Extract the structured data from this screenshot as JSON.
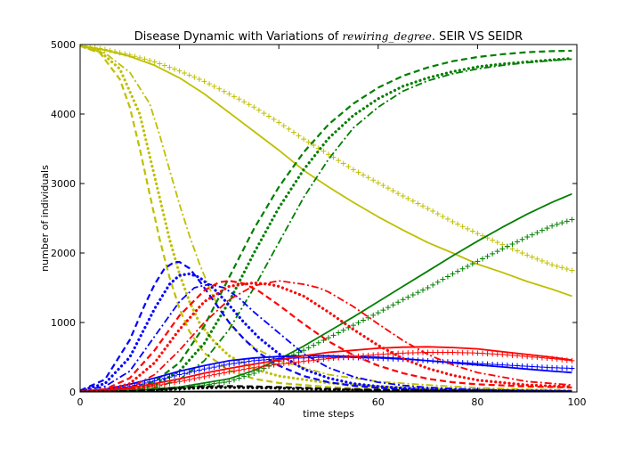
{
  "chart_data": {
    "type": "line",
    "title_parts": [
      "Disease Dynamic with Variations of ",
      "rewiring_degree",
      ". SEIR VS SEIDR"
    ],
    "xlabel": "time steps",
    "ylabel": "number of individuals",
    "xlim": [
      0,
      100
    ],
    "ylim": [
      0,
      5000
    ],
    "xticks": [
      0,
      20,
      40,
      60,
      80,
      100
    ],
    "yticks": [
      0,
      1000,
      2000,
      3000,
      4000,
      5000
    ],
    "grid": false,
    "legend": "none",
    "series": [
      {
        "color": "#bfbf00",
        "style": "solid",
        "x": [
          0,
          5,
          10,
          15,
          20,
          25,
          30,
          35,
          40,
          45,
          50,
          55,
          60,
          65,
          70,
          75,
          80,
          85,
          90,
          95,
          99
        ],
        "y": [
          4980,
          4920,
          4830,
          4700,
          4520,
          4290,
          4020,
          3750,
          3480,
          3190,
          2950,
          2730,
          2520,
          2330,
          2150,
          2000,
          1840,
          1720,
          1590,
          1480,
          1380
        ]
      },
      {
        "color": "#bfbf00",
        "style": "plus",
        "x": [
          0,
          5,
          10,
          15,
          20,
          25,
          30,
          35,
          40,
          45,
          50,
          55,
          60,
          65,
          70,
          75,
          80,
          85,
          90,
          95,
          99
        ],
        "y": [
          4990,
          4930,
          4850,
          4750,
          4620,
          4470,
          4290,
          4100,
          3880,
          3640,
          3420,
          3200,
          3010,
          2820,
          2640,
          2450,
          2280,
          2120,
          1970,
          1830,
          1750
        ]
      },
      {
        "color": "#bfbf00",
        "style": "dashed",
        "x": [
          0,
          4,
          8,
          10,
          12,
          14,
          16,
          18,
          20,
          22,
          25,
          30,
          35,
          40,
          50,
          60,
          70,
          80,
          90,
          99
        ],
        "y": [
          4980,
          4880,
          4500,
          4100,
          3500,
          2850,
          2200,
          1650,
          1200,
          870,
          560,
          310,
          190,
          130,
          70,
          40,
          25,
          15,
          10,
          8
        ]
      },
      {
        "color": "#bfbf00",
        "style": "dotted",
        "x": [
          0,
          4,
          8,
          12,
          14,
          16,
          18,
          20,
          22,
          24,
          27,
          30,
          35,
          40,
          50,
          60,
          70,
          80,
          90,
          99
        ],
        "y": [
          4980,
          4900,
          4650,
          4000,
          3400,
          2800,
          2200,
          1700,
          1300,
          1000,
          720,
          520,
          330,
          230,
          130,
          80,
          50,
          30,
          20,
          15
        ]
      },
      {
        "color": "#bfbf00",
        "style": "dashdot",
        "x": [
          0,
          5,
          10,
          14,
          16,
          18,
          20,
          22,
          24,
          26,
          28,
          31,
          35,
          40,
          50,
          60,
          70,
          80,
          90,
          99
        ],
        "y": [
          4980,
          4880,
          4600,
          4150,
          3700,
          3200,
          2700,
          2250,
          1850,
          1500,
          1200,
          900,
          640,
          450,
          250,
          150,
          100,
          60,
          40,
          30
        ]
      },
      {
        "color": "#007f00",
        "style": "solid",
        "x": [
          0,
          10,
          20,
          30,
          35,
          40,
          45,
          50,
          55,
          60,
          65,
          70,
          75,
          80,
          85,
          90,
          95,
          99
        ],
        "y": [
          5,
          20,
          70,
          190,
          310,
          470,
          660,
          870,
          1080,
          1300,
          1520,
          1740,
          1960,
          2170,
          2370,
          2560,
          2730,
          2850
        ]
      },
      {
        "color": "#007f00",
        "style": "plus",
        "x": [
          0,
          10,
          20,
          30,
          35,
          40,
          45,
          50,
          55,
          60,
          65,
          70,
          75,
          80,
          85,
          90,
          95,
          99
        ],
        "y": [
          5,
          15,
          50,
          150,
          270,
          440,
          600,
          780,
          960,
          1140,
          1330,
          1500,
          1700,
          1880,
          2060,
          2230,
          2390,
          2480
        ]
      },
      {
        "color": "#007f00",
        "style": "dashed",
        "x": [
          0,
          10,
          15,
          20,
          25,
          30,
          35,
          40,
          45,
          50,
          55,
          60,
          65,
          70,
          75,
          80,
          85,
          90,
          95,
          99
        ],
        "y": [
          5,
          40,
          150,
          420,
          950,
          1650,
          2350,
          2950,
          3450,
          3850,
          4150,
          4380,
          4550,
          4670,
          4760,
          4820,
          4860,
          4890,
          4905,
          4910
        ]
      },
      {
        "color": "#007f00",
        "style": "dotted",
        "x": [
          0,
          10,
          15,
          20,
          25,
          30,
          35,
          40,
          45,
          50,
          55,
          60,
          65,
          70,
          75,
          80,
          85,
          90,
          95,
          99
        ],
        "y": [
          5,
          30,
          100,
          300,
          700,
          1300,
          2000,
          2650,
          3200,
          3650,
          3980,
          4220,
          4400,
          4520,
          4610,
          4680,
          4720,
          4750,
          4780,
          4800
        ]
      },
      {
        "color": "#007f00",
        "style": "dashdot",
        "x": [
          0,
          10,
          15,
          20,
          25,
          30,
          35,
          40,
          45,
          50,
          55,
          60,
          65,
          70,
          75,
          80,
          85,
          90,
          95,
          99
        ],
        "y": [
          5,
          20,
          60,
          180,
          450,
          900,
          1500,
          2150,
          2800,
          3350,
          3800,
          4100,
          4330,
          4480,
          4580,
          4650,
          4700,
          4740,
          4770,
          4790
        ]
      },
      {
        "color": "#0000ff",
        "style": "solid",
        "x": [
          0,
          5,
          10,
          15,
          20,
          25,
          30,
          35,
          40,
          45,
          50,
          55,
          60,
          65,
          70,
          75,
          80,
          85,
          90,
          95,
          99
        ],
        "y": [
          10,
          40,
          110,
          200,
          300,
          380,
          450,
          490,
          510,
          520,
          520,
          510,
          500,
          480,
          450,
          420,
          390,
          360,
          330,
          300,
          280
        ]
      },
      {
        "color": "#0000ff",
        "style": "plus",
        "x": [
          0,
          5,
          10,
          15,
          20,
          25,
          30,
          35,
          40,
          45,
          50,
          55,
          60,
          65,
          70,
          75,
          80,
          85,
          90,
          95,
          99
        ],
        "y": [
          10,
          30,
          80,
          160,
          250,
          330,
          400,
          450,
          480,
          490,
          500,
          495,
          485,
          470,
          450,
          430,
          410,
          390,
          370,
          350,
          340
        ]
      },
      {
        "color": "#0000ff",
        "style": "dashed",
        "x": [
          0,
          5,
          10,
          13,
          15,
          17,
          19,
          20,
          22,
          24,
          26,
          28,
          30,
          33,
          36,
          40,
          45,
          50,
          55,
          60,
          65,
          70,
          80,
          90,
          99
        ],
        "y": [
          20,
          180,
          750,
          1250,
          1550,
          1780,
          1870,
          1870,
          1780,
          1600,
          1400,
          1200,
          1000,
          760,
          560,
          380,
          230,
          140,
          90,
          60,
          40,
          30,
          20,
          15,
          10
        ]
      },
      {
        "color": "#0000ff",
        "style": "dotted",
        "x": [
          0,
          5,
          10,
          15,
          18,
          20,
          22,
          24,
          27,
          30,
          33,
          36,
          40,
          45,
          50,
          55,
          60,
          65,
          70,
          80,
          90,
          99
        ],
        "y": [
          20,
          120,
          500,
          1200,
          1550,
          1680,
          1700,
          1650,
          1480,
          1250,
          1000,
          780,
          550,
          330,
          200,
          120,
          80,
          55,
          40,
          25,
          15,
          10
        ]
      },
      {
        "color": "#0000ff",
        "style": "dashdot",
        "x": [
          0,
          5,
          10,
          15,
          20,
          23,
          26,
          29,
          32,
          35,
          40,
          45,
          50,
          55,
          60,
          65,
          70,
          80,
          90,
          99
        ],
        "y": [
          20,
          80,
          300,
          800,
          1300,
          1500,
          1550,
          1500,
          1350,
          1150,
          850,
          550,
          350,
          220,
          140,
          95,
          65,
          35,
          20,
          12
        ]
      },
      {
        "color": "#ff0000",
        "style": "solid",
        "x": [
          0,
          5,
          10,
          15,
          20,
          25,
          30,
          35,
          40,
          45,
          50,
          55,
          60,
          65,
          70,
          75,
          80,
          85,
          90,
          95,
          99
        ],
        "y": [
          5,
          20,
          60,
          120,
          190,
          270,
          340,
          400,
          460,
          520,
          570,
          600,
          630,
          645,
          650,
          640,
          620,
          580,
          540,
          500,
          460
        ]
      },
      {
        "color": "#ff0000",
        "style": "plus",
        "x": [
          0,
          5,
          10,
          15,
          20,
          25,
          30,
          35,
          40,
          45,
          50,
          55,
          60,
          65,
          70,
          75,
          80,
          85,
          90,
          95,
          99
        ],
        "y": [
          5,
          15,
          40,
          90,
          150,
          220,
          290,
          350,
          400,
          440,
          480,
          510,
          540,
          560,
          570,
          570,
          560,
          540,
          510,
          480,
          450
        ]
      },
      {
        "color": "#ff0000",
        "style": "dashed",
        "x": [
          0,
          5,
          10,
          15,
          20,
          25,
          28,
          30,
          33,
          36,
          40,
          45,
          50,
          55,
          60,
          65,
          70,
          75,
          80,
          90,
          99
        ],
        "y": [
          5,
          40,
          200,
          600,
          1100,
          1460,
          1580,
          1600,
          1560,
          1450,
          1250,
          980,
          730,
          530,
          380,
          270,
          190,
          140,
          110,
          80,
          65
        ]
      },
      {
        "color": "#ff0000",
        "style": "dotted",
        "x": [
          0,
          5,
          10,
          15,
          20,
          25,
          30,
          35,
          38,
          40,
          45,
          50,
          55,
          60,
          65,
          70,
          75,
          80,
          90,
          99
        ],
        "y": [
          5,
          25,
          120,
          420,
          900,
          1300,
          1520,
          1570,
          1550,
          1520,
          1380,
          1150,
          900,
          670,
          480,
          340,
          240,
          170,
          100,
          75
        ]
      },
      {
        "color": "#ff0000",
        "style": "dashdot",
        "x": [
          0,
          5,
          10,
          15,
          20,
          25,
          30,
          35,
          40,
          45,
          48,
          50,
          55,
          60,
          65,
          70,
          75,
          80,
          90,
          99
        ],
        "y": [
          5,
          15,
          60,
          250,
          600,
          1000,
          1330,
          1530,
          1600,
          1550,
          1500,
          1440,
          1230,
          980,
          740,
          540,
          390,
          280,
          150,
          100
        ]
      },
      {
        "color": "#000000",
        "style": "dashed",
        "x": [
          0,
          10,
          15,
          20,
          25,
          30,
          35,
          40,
          45,
          50,
          60,
          70,
          80,
          90,
          99
        ],
        "y": [
          0,
          10,
          30,
          60,
          80,
          85,
          80,
          70,
          60,
          45,
          30,
          18,
          10,
          6,
          4
        ]
      },
      {
        "color": "#000000",
        "style": "dotted",
        "x": [
          0,
          10,
          15,
          20,
          25,
          30,
          35,
          40,
          45,
          50,
          60,
          70,
          80,
          90,
          99
        ],
        "y": [
          0,
          6,
          20,
          45,
          60,
          65,
          60,
          55,
          45,
          35,
          22,
          14,
          8,
          5,
          3
        ]
      },
      {
        "color": "#000000",
        "style": "solid",
        "x": [
          0,
          10,
          20,
          30,
          40,
          50,
          60,
          70,
          80,
          90,
          99
        ],
        "y": [
          0,
          2,
          5,
          8,
          10,
          10,
          9,
          8,
          7,
          6,
          5
        ]
      }
    ]
  }
}
